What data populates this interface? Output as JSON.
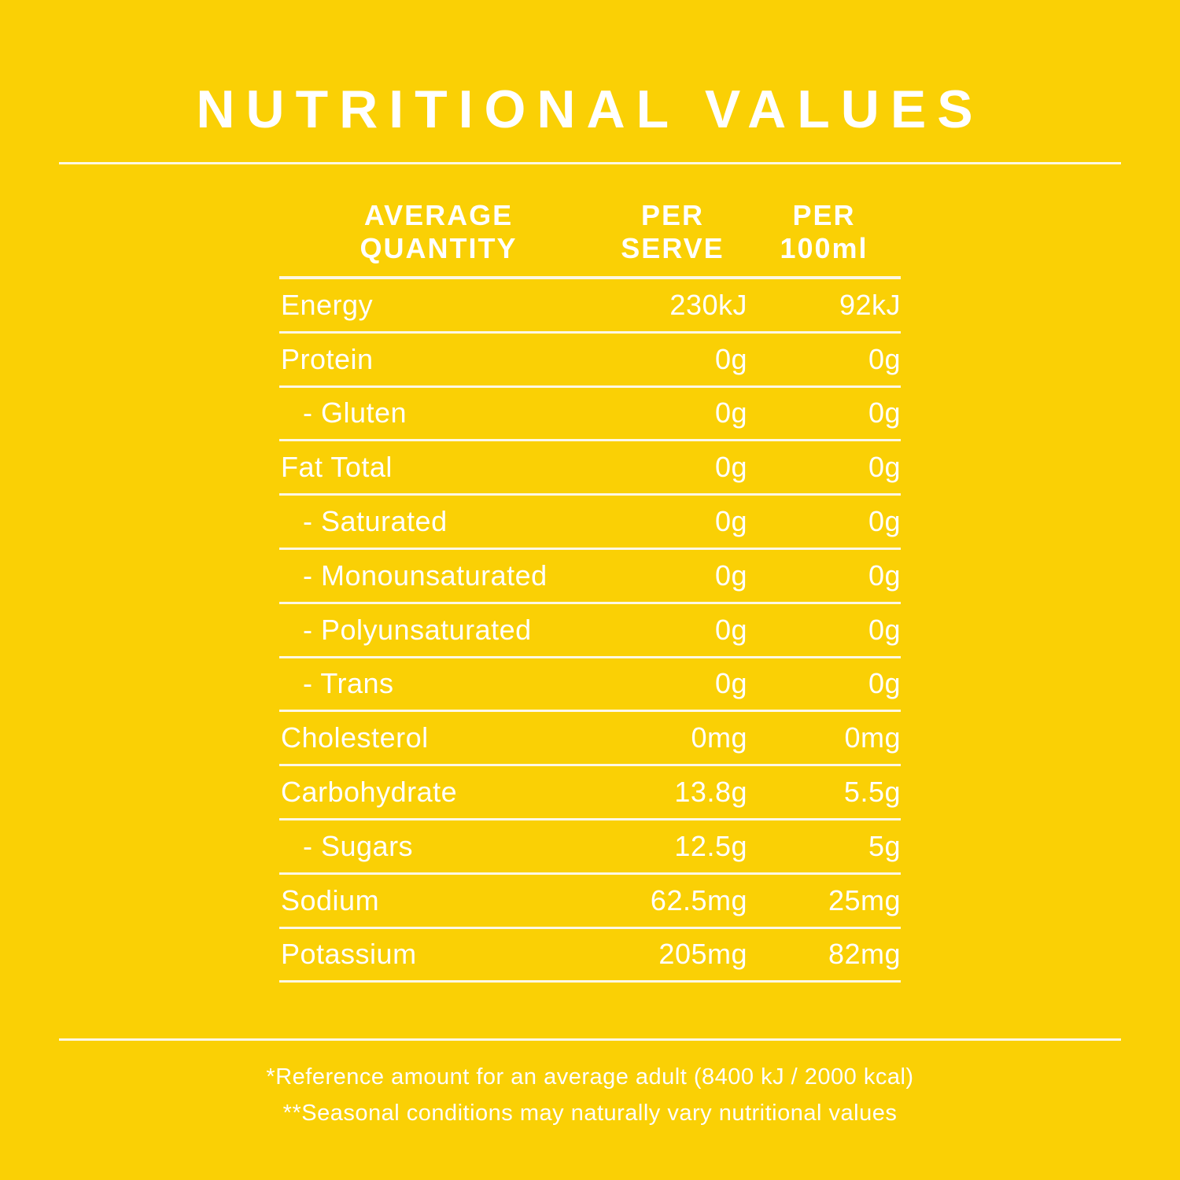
{
  "colors": {
    "background": "#FAD005",
    "text": "#FFFFFF",
    "rule": "#FDF8E4"
  },
  "title": "NUTRITIONAL VALUES",
  "table": {
    "header": {
      "col1": [
        "AVERAGE",
        "QUANTITY"
      ],
      "col2": [
        "PER",
        "SERVE"
      ],
      "col3": [
        "PER",
        "100ml"
      ]
    },
    "rows": [
      {
        "label": "Energy",
        "indent": false,
        "per_serve": "230kJ",
        "per_100ml": "92kJ"
      },
      {
        "label": "Protein",
        "indent": false,
        "per_serve": "0g",
        "per_100ml": "0g"
      },
      {
        "label": "- Gluten",
        "indent": true,
        "per_serve": "0g",
        "per_100ml": "0g"
      },
      {
        "label": "Fat Total",
        "indent": false,
        "per_serve": "0g",
        "per_100ml": "0g"
      },
      {
        "label": "- Saturated",
        "indent": true,
        "per_serve": "0g",
        "per_100ml": "0g"
      },
      {
        "label": "- Monounsaturated",
        "indent": true,
        "per_serve": "0g",
        "per_100ml": "0g"
      },
      {
        "label": "- Polyunsaturated",
        "indent": true,
        "per_serve": "0g",
        "per_100ml": "0g"
      },
      {
        "label": "- Trans",
        "indent": true,
        "per_serve": "0g",
        "per_100ml": "0g"
      },
      {
        "label": "Cholesterol",
        "indent": false,
        "per_serve": "0mg",
        "per_100ml": "0mg"
      },
      {
        "label": "Carbohydrate",
        "indent": false,
        "per_serve": "13.8g",
        "per_100ml": "5.5g"
      },
      {
        "label": "- Sugars",
        "indent": true,
        "per_serve": "12.5g",
        "per_100ml": "5g"
      },
      {
        "label": "Sodium",
        "indent": false,
        "per_serve": "62.5mg",
        "per_100ml": "25mg"
      },
      {
        "label": "Potassium",
        "indent": false,
        "per_serve": "205mg",
        "per_100ml": "82mg"
      }
    ]
  },
  "footnotes": [
    "*Reference amount for an average adult (8400 kJ / 2000 kcal)",
    "**Seasonal conditions may naturally vary nutritional values"
  ]
}
